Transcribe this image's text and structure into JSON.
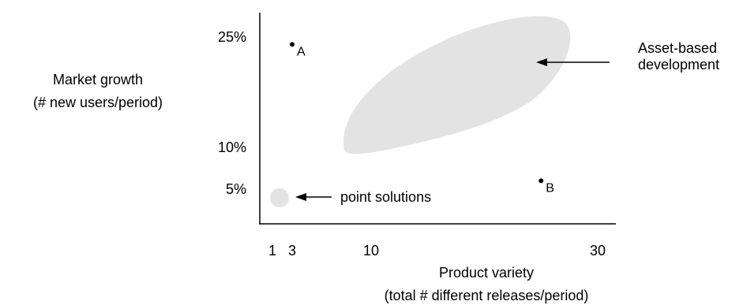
{
  "chart_data": {
    "type": "scatter",
    "title": "",
    "xlabel": [
      "Product variety",
      "(total # different releases/period)"
    ],
    "ylabel": [
      "Market growth",
      "(# new users/period)"
    ],
    "x_ticks": [
      {
        "value": 1,
        "label": "1"
      },
      {
        "value": 3,
        "label": "3"
      },
      {
        "value": 10,
        "label": "10"
      },
      {
        "value": 30,
        "label": "30"
      }
    ],
    "y_ticks": [
      {
        "value": 5,
        "label": "5%"
      },
      {
        "value": 10,
        "label": "10%"
      },
      {
        "value": 25,
        "label": "25%"
      }
    ],
    "points": [
      {
        "label": "A",
        "x": 3,
        "y": 24
      },
      {
        "label": "B",
        "x": 25,
        "y": 6
      }
    ],
    "regions": [
      {
        "name": "Asset-based development",
        "annotation": [
          "Asset-based",
          "development"
        ],
        "color": "#e3e3e3"
      },
      {
        "name": "point solutions",
        "annotation": [
          "point solutions"
        ],
        "color": "#e3e3e3"
      }
    ],
    "grid": false
  }
}
